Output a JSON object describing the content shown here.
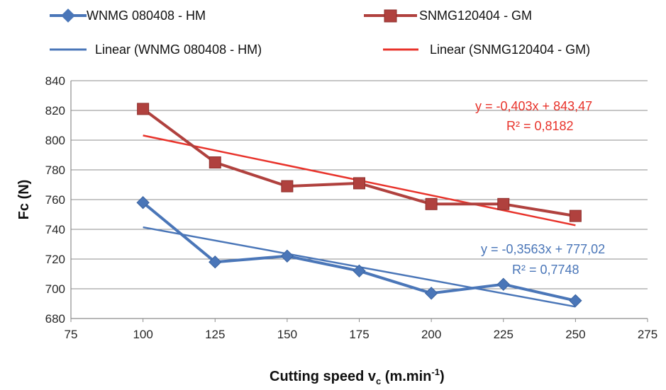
{
  "chart_data": {
    "type": "line",
    "x": [
      100,
      125,
      150,
      175,
      200,
      225,
      250
    ],
    "xlim": [
      75,
      275
    ],
    "xticks": [
      "75",
      "100",
      "125",
      "150",
      "175",
      "200",
      "225",
      "250",
      "275"
    ],
    "ylim": [
      680,
      840
    ],
    "yticks": [
      "680",
      "700",
      "720",
      "740",
      "760",
      "780",
      "800",
      "820",
      "840"
    ],
    "xlabel": "Cutting speed v",
    "xlabel_sub": "c",
    "xlabel_unit": " (m.min",
    "xlabel_sup": "-1",
    "xlabel_close": ")",
    "ylabel": "Fc (N)",
    "grid": "horizontal",
    "legend_position": "top",
    "series": [
      {
        "name": "WNMG 080408 - HM",
        "marker": "diamond",
        "color": "#4a76b8",
        "values": [
          758,
          718,
          722,
          712,
          697,
          703,
          692
        ]
      },
      {
        "name": "SNMG120404 - GM",
        "marker": "square",
        "color": "#b0413e",
        "values": [
          821,
          785,
          769,
          771,
          757,
          757,
          749
        ]
      }
    ],
    "trendlines": [
      {
        "name": "Linear (WNMG 080408 - HM)",
        "color": "#4a76b8",
        "slope": -0.3563,
        "intercept": 777.02,
        "equation": "y = -0,3563x + 777,02",
        "r2": "R² = 0,7748"
      },
      {
        "name": "Linear (SNMG120404 - GM)",
        "color": "#e8332b",
        "slope": -0.403,
        "intercept": 843.47,
        "equation": "y = -0,403x + 843,47",
        "r2": "R² = 0,8182"
      }
    ]
  }
}
